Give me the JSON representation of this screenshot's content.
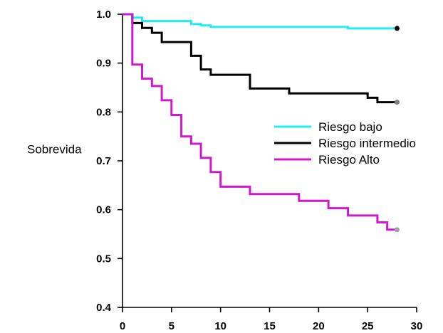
{
  "chart_data": {
    "type": "line",
    "ylabel": "Sobrevida",
    "xlabel": "",
    "title": "",
    "xlim": [
      0,
      30
    ],
    "ylim": [
      0.4,
      1.0
    ],
    "xticks": [
      "0",
      "5",
      "10",
      "15",
      "20",
      "25",
      "30"
    ],
    "yticks": [
      "0.4",
      "0.5",
      "0.6",
      "0.7",
      "0.8",
      "0.9",
      "1.0"
    ],
    "grid": false,
    "legend_position": "center-right",
    "series": [
      {
        "name": "Riesgo bajo",
        "color": "#22eef2",
        "end_marker_color": "#000000",
        "x": [
          0,
          1,
          2,
          7,
          8,
          9,
          23,
          28
        ],
        "y": [
          1.0,
          0.993,
          0.986,
          0.98,
          0.977,
          0.974,
          0.971,
          0.971
        ]
      },
      {
        "name": "Riesgo intermedio",
        "color": "#000000",
        "end_marker_color": "#808080",
        "x": [
          0,
          1,
          2,
          3,
          4,
          7,
          8,
          9,
          13,
          17,
          25,
          26,
          27,
          28
        ],
        "y": [
          1.0,
          0.982,
          0.972,
          0.962,
          0.943,
          0.915,
          0.887,
          0.876,
          0.848,
          0.838,
          0.829,
          0.82,
          0.82,
          0.82
        ]
      },
      {
        "name": "Riesgo Alto",
        "color": "#cc1acc",
        "end_marker_color": "#a0a0a0",
        "x": [
          0,
          1,
          2,
          3,
          4,
          5,
          6,
          7,
          8,
          9,
          10,
          13,
          18,
          21,
          23,
          26,
          27,
          28
        ],
        "y": [
          1.0,
          0.897,
          0.868,
          0.853,
          0.824,
          0.794,
          0.75,
          0.735,
          0.706,
          0.677,
          0.647,
          0.632,
          0.618,
          0.603,
          0.588,
          0.574,
          0.559,
          0.559
        ]
      }
    ]
  }
}
